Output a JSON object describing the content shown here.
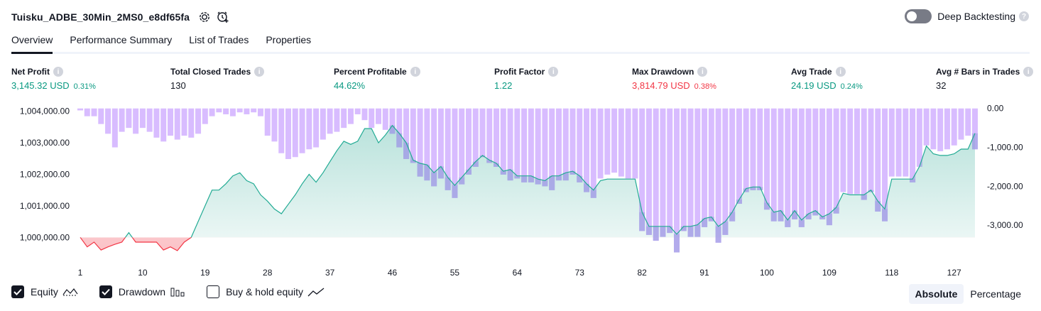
{
  "header": {
    "strategy_name": "Tuisku_ADBE_30Min_2MS0_e8df65fa",
    "deep_backtesting_label": "Deep Backtesting",
    "deep_backtesting_enabled": false,
    "icons": [
      "settings-icon",
      "add-alert-icon",
      "info-icon"
    ]
  },
  "tabs": [
    {
      "label": "Overview",
      "active": true
    },
    {
      "label": "Performance Summary",
      "active": false
    },
    {
      "label": "List of Trades",
      "active": false
    },
    {
      "label": "Properties",
      "active": false
    }
  ],
  "stats": {
    "net_profit": {
      "label": "Net Profit",
      "value": "3,145.32 USD",
      "pct": "0.31%"
    },
    "total_closed_trades": {
      "label": "Total Closed Trades",
      "value": "130"
    },
    "percent_profitable": {
      "label": "Percent Profitable",
      "value": "44.62%"
    },
    "profit_factor": {
      "label": "Profit Factor",
      "value": "1.22"
    },
    "max_drawdown": {
      "label": "Max Drawdown",
      "value": "3,814.79 USD",
      "pct": "0.38%"
    },
    "avg_trade": {
      "label": "Avg Trade",
      "value": "24.19 USD",
      "pct": "0.24%"
    },
    "avg_bars": {
      "label": "Avg # Bars in Trades",
      "value": "32"
    }
  },
  "colors": {
    "profit": "#089981",
    "loss": "#f23645",
    "equity_line_up": "#22ab94",
    "equity_line_down": "#f23645",
    "drawdown_bar": "#d8bcff",
    "drawdown_overlap": "#a7a6e6"
  },
  "chart_data": {
    "type": "area",
    "series": [
      {
        "name": "Equity",
        "axis": "left"
      },
      {
        "name": "Drawdown",
        "axis": "right",
        "type": "bar"
      }
    ],
    "x_ticks": [
      "1",
      "10",
      "19",
      "28",
      "37",
      "46",
      "55",
      "64",
      "73",
      "82",
      "91",
      "100",
      "109",
      "118",
      "127"
    ],
    "left_ticks": [
      "1,004,000.00",
      "1,003,000.00",
      "1,002,000.00",
      "1,001,000.00",
      "1,000,000.00"
    ],
    "right_ticks": [
      "0.00",
      "-1,000.00",
      "-2,000.00",
      "-3,000.00"
    ],
    "x_range": [
      1,
      130
    ],
    "equity_baseline": 1000000,
    "ylim_left": [
      999400,
      1004150
    ],
    "ylim_right": [
      -3800,
      50
    ],
    "equity": [
      1000000,
      999700,
      999850,
      999600,
      999700,
      999780,
      999850,
      1000150,
      999850,
      999850,
      999850,
      999850,
      999600,
      999700,
      999580,
      999850,
      1000000,
      1000500,
      1001000,
      1001500,
      1001500,
      1001700,
      1001950,
      1002050,
      1001800,
      1001700,
      1001350,
      1001150,
      1000900,
      1000750,
      1001050,
      1001350,
      1001700,
      1002000,
      1001750,
      1002050,
      1002400,
      1002750,
      1003050,
      1002950,
      1003050,
      1003450,
      1003450,
      1003000,
      1003250,
      1003550,
      1003300,
      1003000,
      1002450,
      1002350,
      1002300,
      1002050,
      1002250,
      1001900,
      1001650,
      1001900,
      1002150,
      1002400,
      1002600,
      1002450,
      1002350,
      1002100,
      1002150,
      1001950,
      1001950,
      1001950,
      1001850,
      1001800,
      1001950,
      1001950,
      1002050,
      1002100,
      1001950,
      1001700,
      1001500,
      1001800,
      1001850,
      1001850,
      1001850,
      1001850,
      1001850,
      1000800,
      1000350,
      1000350,
      1000350,
      1000350,
      1000100,
      1000350,
      1000350,
      1000400,
      1000600,
      1000650,
      1000350,
      1000500,
      1000800,
      1001200,
      1001550,
      1001600,
      1001600,
      1001100,
      1000800,
      1000850,
      1000550,
      1000850,
      1000550,
      1000750,
      1000850,
      1000650,
      1000750,
      1000950,
      1001400,
      1001350,
      1001350,
      1001350,
      1001500,
      1001150,
      1000900,
      1001850,
      1001850,
      1001850,
      1001850,
      1002250,
      1002900,
      1002650,
      1002600,
      1002600,
      1002650,
      1002800,
      1002800,
      1003300
    ],
    "drawdown": [
      -50,
      -200,
      -200,
      -400,
      -650,
      -1000,
      -600,
      -500,
      -650,
      -500,
      -600,
      -750,
      -850,
      -700,
      -800,
      -700,
      -750,
      -650,
      -400,
      -200,
      -100,
      -150,
      -200,
      -100,
      -150,
      -100,
      -200,
      -700,
      -850,
      -1150,
      -1300,
      -1250,
      -1150,
      -1050,
      -1000,
      -800,
      -650,
      -600,
      -500,
      -400,
      -150,
      -300,
      -500,
      -400,
      -550,
      -650,
      -1000,
      -1300,
      -1400,
      -1750,
      -1850,
      -2000,
      -1800,
      -2100,
      -2300,
      -1950,
      -1700,
      -1500,
      -1250,
      -1400,
      -1500,
      -1700,
      -1850,
      -1800,
      -1900,
      -1900,
      -1950,
      -2000,
      -2100,
      -1850,
      -1850,
      -1700,
      -1900,
      -2150,
      -2300,
      -1800,
      -1700,
      -1650,
      -1750,
      -1800,
      -1800,
      -3150,
      -3250,
      -3400,
      -3300,
      -3200,
      -3700,
      -3150,
      -3300,
      -3300,
      -3050,
      -2900,
      -3450,
      -3250,
      -2900,
      -2450,
      -2150,
      -2100,
      -2100,
      -2600,
      -2900,
      -2900,
      -3050,
      -2850,
      -3050,
      -2850,
      -2750,
      -2850,
      -3000,
      -2700,
      -2150,
      -2200,
      -2200,
      -2350,
      -2150,
      -2650,
      -2900,
      -1750,
      -1750,
      -1750,
      -1900,
      -1500,
      -950,
      -1050,
      -1100,
      -1050,
      -950,
      -800,
      -700,
      -1050
    ]
  },
  "legend": [
    {
      "label": "Equity",
      "checked": true,
      "icon": "equity-line-icon"
    },
    {
      "label": "Drawdown",
      "checked": true,
      "icon": "drawdown-bars-icon"
    },
    {
      "label": "Buy & hold equity",
      "checked": false,
      "icon": "buy-hold-line-icon"
    }
  ],
  "view_modes": [
    {
      "label": "Absolute",
      "active": true
    },
    {
      "label": "Percentage",
      "active": false
    }
  ]
}
